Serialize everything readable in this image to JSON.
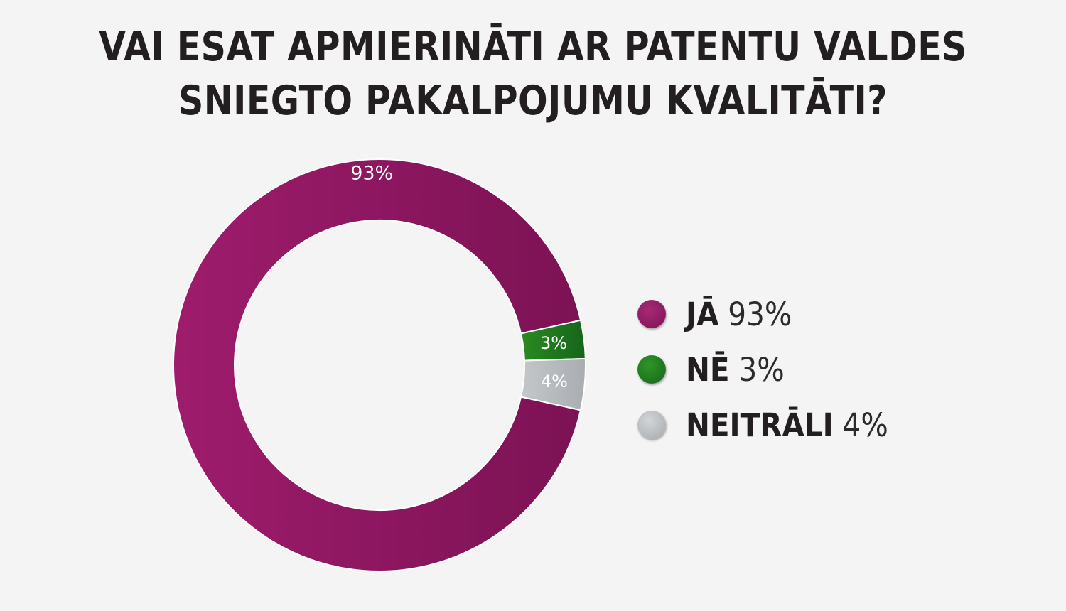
{
  "chart_data": {
    "type": "pie",
    "variant": "donut",
    "title_lines": [
      "VAI ESAT APMIERINĀTI AR PATENTU VALDES",
      "SNIEGTO PAKALPOJUMU KVALITĀTI?"
    ],
    "slices": [
      {
        "label": "JĀ",
        "value": 93,
        "value_label": "93%",
        "color": "#8e1b62"
      },
      {
        "label": "NĒ",
        "value": 3,
        "value_label": "3%",
        "color": "#1f7a1a"
      },
      {
        "label": "NEITRĀLI",
        "value": 4,
        "value_label": "4%",
        "color": "#b9bcbf"
      }
    ],
    "legend_position": "right"
  }
}
